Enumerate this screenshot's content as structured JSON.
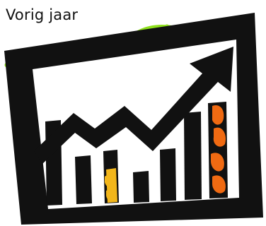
{
  "caption": "Vorig jaar",
  "clipart": {
    "icon": "rising-bar-chart-icon",
    "colors": {
      "frame": "#111111",
      "background": "#ffffff",
      "scribble": "#8ee01c",
      "yellow_fill": "#f2b61b",
      "orange_fill": "#f06a12"
    }
  }
}
